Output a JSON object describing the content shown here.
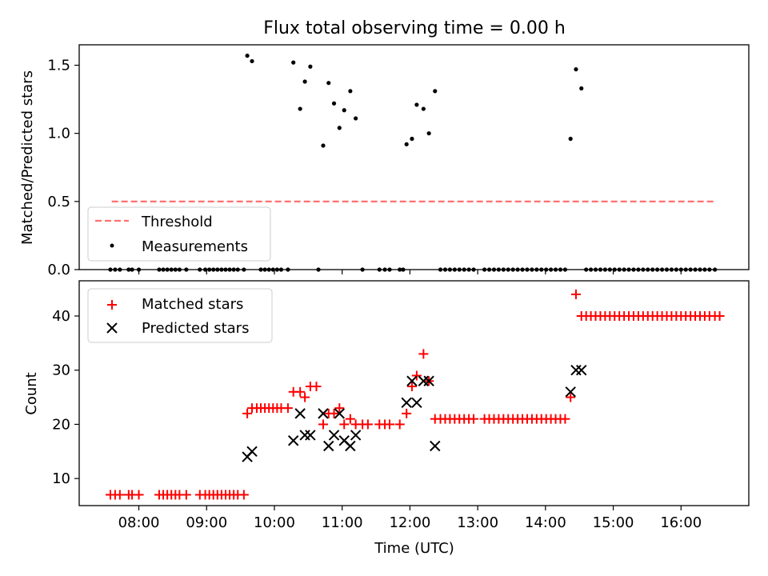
{
  "chart_data": [
    {
      "type": "scatter",
      "title": "Flux total observing time = 0.00 h",
      "xlabel": "",
      "ylabel": "Matched/Predicted stars",
      "xlim": [
        7.12,
        17.0
      ],
      "ylim": [
        0.0,
        1.65
      ],
      "yticks": [
        0.0,
        0.5,
        1.0,
        1.5
      ],
      "yticklabels": [
        "0.0",
        "0.5",
        "1.0",
        "1.5"
      ],
      "xticks": [
        8,
        9,
        10,
        11,
        12,
        13,
        14,
        15,
        16
      ],
      "legend": {
        "placement": "lower-left",
        "entries": [
          "Threshold",
          "Measurements"
        ]
      },
      "threshold": {
        "name": "Threshold",
        "value": 0.5,
        "x": [
          7.6,
          16.5
        ],
        "color": "#ff7070"
      },
      "series": [
        {
          "name": "Measurements",
          "color": "#000000",
          "points": [
            [
              7.58,
              0
            ],
            [
              7.65,
              0
            ],
            [
              7.72,
              0
            ],
            [
              7.85,
              0
            ],
            [
              7.9,
              0
            ],
            [
              8.0,
              0
            ],
            [
              8.3,
              0
            ],
            [
              8.36,
              0
            ],
            [
              8.42,
              0
            ],
            [
              8.48,
              0
            ],
            [
              8.54,
              0
            ],
            [
              8.6,
              0
            ],
            [
              8.7,
              0
            ],
            [
              8.9,
              0
            ],
            [
              8.98,
              0
            ],
            [
              9.04,
              0
            ],
            [
              9.1,
              0
            ],
            [
              9.16,
              0
            ],
            [
              9.22,
              0
            ],
            [
              9.28,
              0
            ],
            [
              9.34,
              0
            ],
            [
              9.4,
              0
            ],
            [
              9.46,
              0
            ],
            [
              9.55,
              0
            ],
            [
              9.6,
              1.57
            ],
            [
              9.67,
              1.53
            ],
            [
              9.8,
              0
            ],
            [
              9.86,
              0
            ],
            [
              9.92,
              0
            ],
            [
              9.98,
              0
            ],
            [
              10.04,
              0
            ],
            [
              10.1,
              0
            ],
            [
              10.2,
              0
            ],
            [
              10.28,
              1.52
            ],
            [
              10.38,
              1.18
            ],
            [
              10.45,
              1.38
            ],
            [
              10.53,
              1.49
            ],
            [
              10.65,
              0
            ],
            [
              10.72,
              0.91
            ],
            [
              10.8,
              1.37
            ],
            [
              10.88,
              1.22
            ],
            [
              10.96,
              1.04
            ],
            [
              11.03,
              1.17
            ],
            [
              11.12,
              1.31
            ],
            [
              11.2,
              1.11
            ],
            [
              11.3,
              0
            ],
            [
              11.55,
              0
            ],
            [
              11.63,
              0
            ],
            [
              11.7,
              0
            ],
            [
              11.85,
              0
            ],
            [
              11.9,
              0
            ],
            [
              11.95,
              0.92
            ],
            [
              12.03,
              0.96
            ],
            [
              12.1,
              1.21
            ],
            [
              12.2,
              1.18
            ],
            [
              12.28,
              1.0
            ],
            [
              12.37,
              1.31
            ],
            [
              12.45,
              0
            ],
            [
              12.52,
              0
            ],
            [
              12.59,
              0
            ],
            [
              12.66,
              0
            ],
            [
              12.73,
              0
            ],
            [
              12.8,
              0
            ],
            [
              12.87,
              0
            ],
            [
              12.94,
              0
            ],
            [
              13.1,
              0
            ],
            [
              13.17,
              0
            ],
            [
              13.24,
              0
            ],
            [
              13.31,
              0
            ],
            [
              13.38,
              0
            ],
            [
              13.45,
              0
            ],
            [
              13.52,
              0
            ],
            [
              13.59,
              0
            ],
            [
              13.66,
              0
            ],
            [
              13.73,
              0
            ],
            [
              13.8,
              0
            ],
            [
              13.87,
              0
            ],
            [
              13.94,
              0
            ],
            [
              14.01,
              0
            ],
            [
              14.08,
              0
            ],
            [
              14.15,
              0
            ],
            [
              14.22,
              0
            ],
            [
              14.29,
              0
            ],
            [
              14.37,
              0.96
            ],
            [
              14.45,
              1.47
            ],
            [
              14.53,
              1.33
            ],
            [
              14.6,
              0
            ],
            [
              14.67,
              0
            ],
            [
              14.74,
              0
            ],
            [
              14.81,
              0
            ],
            [
              14.88,
              0
            ],
            [
              14.95,
              0
            ],
            [
              15.02,
              0
            ],
            [
              15.09,
              0
            ],
            [
              15.16,
              0
            ],
            [
              15.23,
              0
            ],
            [
              15.3,
              0
            ],
            [
              15.37,
              0
            ],
            [
              15.44,
              0
            ],
            [
              15.51,
              0
            ],
            [
              15.58,
              0
            ],
            [
              15.65,
              0
            ],
            [
              15.72,
              0
            ],
            [
              15.79,
              0
            ],
            [
              15.86,
              0
            ],
            [
              15.93,
              0
            ],
            [
              16.0,
              0
            ],
            [
              16.07,
              0
            ],
            [
              16.14,
              0
            ],
            [
              16.21,
              0
            ],
            [
              16.28,
              0
            ],
            [
              16.35,
              0
            ],
            [
              16.42,
              0
            ],
            [
              16.5,
              0
            ]
          ]
        }
      ]
    },
    {
      "type": "scatter",
      "title": "",
      "xlabel": "Time (UTC)",
      "ylabel": "Count",
      "xlim": [
        7.12,
        17.0
      ],
      "ylim": [
        5.0,
        46.5
      ],
      "yticks": [
        10,
        20,
        30,
        40
      ],
      "yticklabels": [
        "10",
        "20",
        "30",
        "40"
      ],
      "xticks": [
        8,
        9,
        10,
        11,
        12,
        13,
        14,
        15,
        16
      ],
      "xticklabels": [
        "08:00",
        "09:00",
        "10:00",
        "11:00",
        "12:00",
        "13:00",
        "14:00",
        "15:00",
        "16:00"
      ],
      "legend": {
        "placement": "upper-left",
        "entries": [
          "Matched stars",
          "Predicted stars"
        ]
      },
      "series": [
        {
          "name": "Matched stars",
          "marker": "plus",
          "color": "#ff0000",
          "points": [
            [
              7.58,
              7
            ],
            [
              7.65,
              7
            ],
            [
              7.72,
              7
            ],
            [
              7.85,
              7
            ],
            [
              7.9,
              7
            ],
            [
              8.0,
              7
            ],
            [
              8.3,
              7
            ],
            [
              8.36,
              7
            ],
            [
              8.42,
              7
            ],
            [
              8.48,
              7
            ],
            [
              8.54,
              7
            ],
            [
              8.6,
              7
            ],
            [
              8.7,
              7
            ],
            [
              8.9,
              7
            ],
            [
              8.98,
              7
            ],
            [
              9.04,
              7
            ],
            [
              9.1,
              7
            ],
            [
              9.16,
              7
            ],
            [
              9.22,
              7
            ],
            [
              9.28,
              7
            ],
            [
              9.34,
              7
            ],
            [
              9.4,
              7
            ],
            [
              9.46,
              7
            ],
            [
              9.55,
              7
            ],
            [
              9.6,
              22
            ],
            [
              9.67,
              23
            ],
            [
              9.74,
              23
            ],
            [
              9.8,
              23
            ],
            [
              9.86,
              23
            ],
            [
              9.92,
              23
            ],
            [
              9.98,
              23
            ],
            [
              10.04,
              23
            ],
            [
              10.1,
              23
            ],
            [
              10.2,
              23
            ],
            [
              10.28,
              26
            ],
            [
              10.38,
              26
            ],
            [
              10.45,
              25
            ],
            [
              10.53,
              27
            ],
            [
              10.62,
              27
            ],
            [
              10.72,
              20
            ],
            [
              10.8,
              22
            ],
            [
              10.88,
              22
            ],
            [
              10.96,
              23
            ],
            [
              11.03,
              20
            ],
            [
              11.12,
              21
            ],
            [
              11.2,
              20
            ],
            [
              11.3,
              20
            ],
            [
              11.38,
              20
            ],
            [
              11.55,
              20
            ],
            [
              11.63,
              20
            ],
            [
              11.7,
              20
            ],
            [
              11.85,
              20
            ],
            [
              11.95,
              22
            ],
            [
              12.03,
              27
            ],
            [
              12.1,
              29
            ],
            [
              12.2,
              33
            ],
            [
              12.28,
              28
            ],
            [
              12.37,
              21
            ],
            [
              12.45,
              21
            ],
            [
              12.52,
              21
            ],
            [
              12.59,
              21
            ],
            [
              12.66,
              21
            ],
            [
              12.73,
              21
            ],
            [
              12.8,
              21
            ],
            [
              12.87,
              21
            ],
            [
              12.94,
              21
            ],
            [
              13.1,
              21
            ],
            [
              13.17,
              21
            ],
            [
              13.24,
              21
            ],
            [
              13.31,
              21
            ],
            [
              13.38,
              21
            ],
            [
              13.45,
              21
            ],
            [
              13.52,
              21
            ],
            [
              13.59,
              21
            ],
            [
              13.66,
              21
            ],
            [
              13.73,
              21
            ],
            [
              13.8,
              21
            ],
            [
              13.87,
              21
            ],
            [
              13.94,
              21
            ],
            [
              14.01,
              21
            ],
            [
              14.08,
              21
            ],
            [
              14.15,
              21
            ],
            [
              14.22,
              21
            ],
            [
              14.29,
              21
            ],
            [
              14.37,
              25
            ],
            [
              14.45,
              44
            ],
            [
              14.53,
              40
            ],
            [
              14.6,
              40
            ],
            [
              14.67,
              40
            ],
            [
              14.74,
              40
            ],
            [
              14.81,
              40
            ],
            [
              14.88,
              40
            ],
            [
              14.95,
              40
            ],
            [
              15.02,
              40
            ],
            [
              15.09,
              40
            ],
            [
              15.16,
              40
            ],
            [
              15.23,
              40
            ],
            [
              15.3,
              40
            ],
            [
              15.37,
              40
            ],
            [
              15.44,
              40
            ],
            [
              15.51,
              40
            ],
            [
              15.58,
              40
            ],
            [
              15.65,
              40
            ],
            [
              15.72,
              40
            ],
            [
              15.79,
              40
            ],
            [
              15.86,
              40
            ],
            [
              15.93,
              40
            ],
            [
              16.0,
              40
            ],
            [
              16.07,
              40
            ],
            [
              16.14,
              40
            ],
            [
              16.21,
              40
            ],
            [
              16.28,
              40
            ],
            [
              16.35,
              40
            ],
            [
              16.42,
              40
            ],
            [
              16.5,
              40
            ],
            [
              16.57,
              40
            ]
          ]
        },
        {
          "name": "Predicted stars",
          "marker": "x",
          "color": "#000000",
          "points": [
            [
              9.6,
              14
            ],
            [
              9.67,
              15
            ],
            [
              10.28,
              17
            ],
            [
              10.38,
              22
            ],
            [
              10.45,
              18
            ],
            [
              10.53,
              18
            ],
            [
              10.72,
              22
            ],
            [
              10.8,
              16
            ],
            [
              10.88,
              18
            ],
            [
              10.96,
              22
            ],
            [
              11.03,
              17
            ],
            [
              11.12,
              16
            ],
            [
              11.2,
              18
            ],
            [
              11.95,
              24
            ],
            [
              12.03,
              28
            ],
            [
              12.1,
              24
            ],
            [
              12.2,
              28
            ],
            [
              12.28,
              28
            ],
            [
              12.37,
              16
            ],
            [
              14.37,
              26
            ],
            [
              14.45,
              30
            ],
            [
              14.53,
              30
            ]
          ]
        }
      ]
    }
  ]
}
